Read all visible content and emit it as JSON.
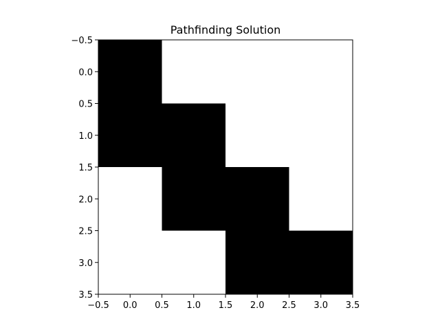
{
  "chart_data": {
    "type": "heatmap",
    "title": "Pathfinding Solution",
    "xlabel": "",
    "ylabel": "",
    "xlim": [
      -0.5,
      3.5
    ],
    "ylim": [
      3.5,
      -0.5
    ],
    "y_inverted": true,
    "grid": false,
    "colormap": {
      "0": "#ffffff",
      "1": "#000000"
    },
    "matrix": [
      [
        1,
        0,
        0,
        0
      ],
      [
        1,
        1,
        0,
        0
      ],
      [
        0,
        1,
        1,
        0
      ],
      [
        0,
        0,
        1,
        1
      ]
    ],
    "x_ticks": [
      -0.5,
      0.0,
      0.5,
      1.0,
      1.5,
      2.0,
      2.5,
      3.0,
      3.5
    ],
    "x_tick_labels": [
      "−0.5",
      "0.0",
      "0.5",
      "1.0",
      "1.5",
      "2.0",
      "2.5",
      "3.0",
      "3.5"
    ],
    "y_ticks": [
      -0.5,
      0.0,
      0.5,
      1.0,
      1.5,
      2.0,
      2.5,
      3.0,
      3.5
    ],
    "y_tick_labels": [
      "−0.5",
      "0.0",
      "0.5",
      "1.0",
      "1.5",
      "2.0",
      "2.5",
      "3.0",
      "3.5"
    ]
  }
}
